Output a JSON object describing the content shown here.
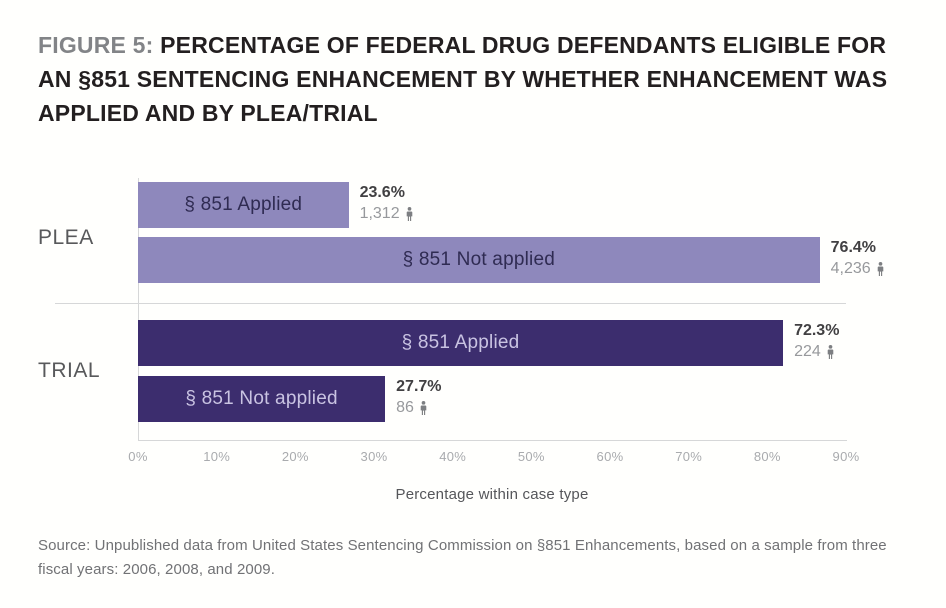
{
  "title": {
    "figure_label": "FIGURE 5:",
    "text": "PERCENTAGE OF FEDERAL DRUG DEFENDANTS ELIGIBLE FOR AN §851 SENTENCING ENHANCEMENT BY WHETHER ENHANCEMENT WAS APPLIED AND BY PLEA/TRIAL"
  },
  "chart_data": {
    "type": "bar",
    "orientation": "horizontal",
    "title": "FIGURE 5: PERCENTAGE OF FEDERAL DRUG DEFENDANTS ELIGIBLE FOR AN §851 SENTENCING ENHANCEMENT BY WHETHER ENHANCEMENT WAS APPLIED AND BY PLEA/TRIAL",
    "xlabel": "Percentage within case type",
    "ylabel": "",
    "axis": {
      "min": 0,
      "max": 90,
      "ticks": [
        "0%",
        "10%",
        "20%",
        "30%",
        "40%",
        "50%",
        "60%",
        "70%",
        "80%",
        "90%"
      ]
    },
    "grid": false,
    "legend": "none",
    "groups": [
      {
        "category": "PLEA",
        "color": "#8e88bc",
        "bars": [
          {
            "label": "§ 851 Applied",
            "value": 23.6,
            "pct_label": "23.6%",
            "count": 1312,
            "count_label": "1,312"
          },
          {
            "label": "§ 851 Not applied",
            "value": 76.4,
            "pct_label": "76.4%",
            "count": 4236,
            "count_label": "4,236"
          }
        ]
      },
      {
        "category": "TRIAL",
        "color": "#3c2d6e",
        "bars": [
          {
            "label": "§ 851 Applied",
            "value": 72.3,
            "pct_label": "72.3%",
            "count": 224,
            "count_label": "224"
          },
          {
            "label": "§ 851 Not applied",
            "value": 27.7,
            "pct_label": "27.7%",
            "count": 86,
            "count_label": "86"
          }
        ]
      }
    ]
  },
  "colors": {
    "plea_bar": "#8e88bc",
    "trial_bar": "#3c2d6e",
    "title_label_gray": "#828487",
    "title_text": "#231f20",
    "count_gray": "#97999c",
    "axis_line": "#d6d7d8"
  },
  "source": "Source: Unpublished data from United States Sentencing Commission on §851 Enhancements, based on a sample from three fiscal years: 2006, 2008, and 2009."
}
